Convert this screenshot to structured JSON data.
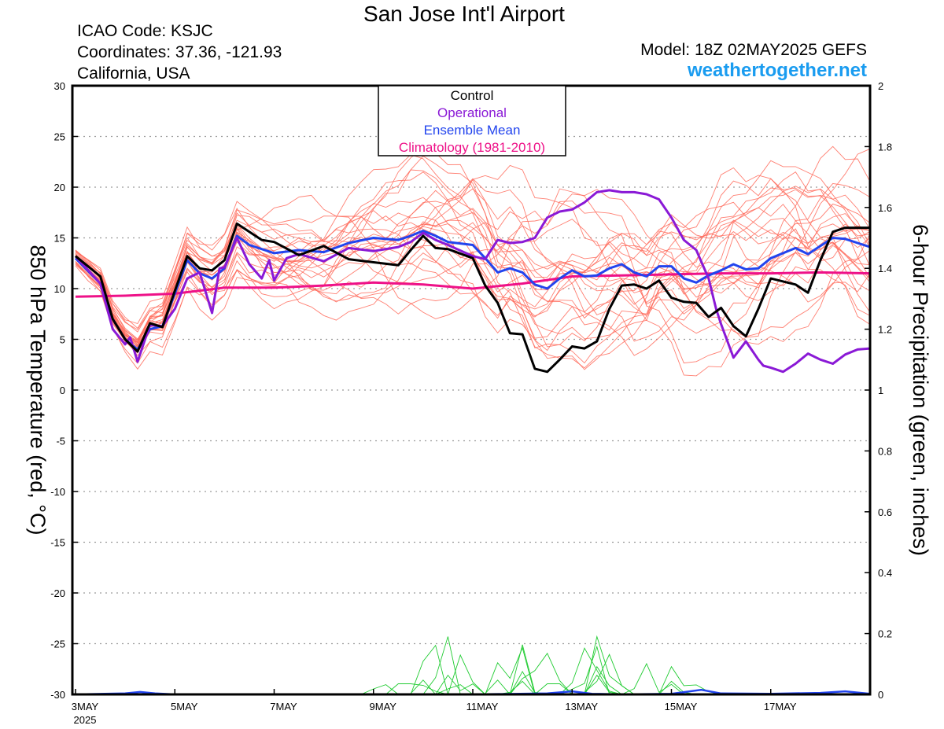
{
  "header": {
    "title": "San Jose Int'l Airport",
    "icao": "ICAO Code: KSJC",
    "coordinates": "Coordinates: 37.36, -121.93",
    "region": "California, USA",
    "model": "Model: 18Z 02MAY2025 GEFS",
    "site": "weathertogether.net"
  },
  "chart_data": {
    "type": "line",
    "title": "San Jose Int'l Airport",
    "ylabel": "850 hPa Temperature (red, °C)",
    "y2label": "6-hour Precipitation (green, inches)",
    "ylim": [
      -30,
      30
    ],
    "y2lim": [
      0,
      2
    ],
    "xlim_days": [
      0,
      16.0
    ],
    "x_ticks": [
      {
        "x": 0,
        "label": "3MAY",
        "sublabel": "2025"
      },
      {
        "x": 2,
        "label": "5MAY"
      },
      {
        "x": 4,
        "label": "7MAY"
      },
      {
        "x": 6,
        "label": "9MAY"
      },
      {
        "x": 8,
        "label": "11MAY"
      },
      {
        "x": 10,
        "label": "13MAY"
      },
      {
        "x": 12,
        "label": "15MAY"
      },
      {
        "x": 14,
        "label": "17MAY"
      }
    ],
    "y_ticks": [
      30,
      25,
      20,
      15,
      10,
      5,
      0,
      -5,
      -10,
      -15,
      -20,
      -25,
      -30
    ],
    "y2_ticks": [
      2,
      1.8,
      1.6,
      1.4,
      1.2,
      1,
      0.8,
      0.6,
      0.4,
      0.2,
      0
    ],
    "grid": true,
    "legend": {
      "placement": "top-center",
      "items": [
        {
          "label": "Control",
          "color": "#000000"
        },
        {
          "label": "Operational",
          "color": "#8a19d6"
        },
        {
          "label": "Ensemble Mean",
          "color": "#2244ee"
        },
        {
          "label": "Climatology (1981-2010)",
          "color": "#ee1188"
        }
      ]
    },
    "series": [
      {
        "name": "Control",
        "color": "#000000",
        "axis": "left",
        "x": [
          0,
          0.5,
          0.75,
          1,
          1.25,
          1.5,
          1.75,
          2,
          2.25,
          2.5,
          2.75,
          3,
          3.25,
          3.5,
          3.75,
          4,
          4.5,
          5,
          5.5,
          6,
          6.5,
          6.75,
          7,
          7.25,
          7.5,
          8,
          8.25,
          8.5,
          8.75,
          9,
          9.25,
          9.5,
          9.75,
          10,
          10.25,
          10.5,
          10.75,
          11,
          11.25,
          11.5,
          11.75,
          12,
          12.25,
          12.5,
          12.75,
          13,
          13.25,
          13.5,
          13.75,
          14,
          14.5,
          14.75,
          15,
          15.25,
          15.5,
          15.75,
          16
        ],
        "y": [
          13.2,
          11.2,
          7.0,
          5.0,
          3.8,
          6.6,
          6.2,
          9.8,
          13.2,
          12.0,
          11.8,
          12.8,
          16.4,
          15.6,
          14.8,
          14.6,
          13.3,
          14.2,
          12.9,
          12.6,
          12.3,
          13.8,
          15.2,
          14.0,
          13.9,
          13.0,
          10.3,
          8.6,
          5.6,
          5.5,
          2.1,
          1.8,
          3.0,
          4.3,
          4.1,
          4.8,
          8.0,
          10.3,
          10.4,
          10.0,
          10.8,
          9.1,
          8.7,
          8.6,
          7.2,
          8.1,
          6.3,
          5.3,
          8.0,
          11.0,
          10.4,
          9.6,
          12.8,
          15.6,
          16.0,
          16.0,
          16.0
        ]
      },
      {
        "name": "Operational",
        "color": "#8a19d6",
        "axis": "left",
        "x": [
          0,
          0.5,
          0.75,
          1,
          1.1,
          1.25,
          1.4,
          1.5,
          1.75,
          2,
          2.25,
          2.5,
          2.75,
          2.9,
          3,
          3.25,
          3.5,
          3.75,
          3.9,
          4,
          4.25,
          4.5,
          5,
          5.5,
          6,
          6.5,
          6.75,
          7,
          7.25,
          7.5,
          8,
          8.25,
          8.5,
          8.75,
          9,
          9.25,
          9.5,
          9.75,
          10,
          10.25,
          10.5,
          10.75,
          11,
          11.25,
          11.5,
          11.75,
          12,
          12.25,
          12.5,
          12.75,
          12.9,
          13,
          13.25,
          13.5,
          13.75,
          13.85,
          14,
          14.25,
          14.5,
          14.75,
          15,
          15.25,
          15.5,
          15.75,
          16
        ],
        "y": [
          13.2,
          10.5,
          6.0,
          4.5,
          5.2,
          2.8,
          5.0,
          6.4,
          6.3,
          8.0,
          11.0,
          11.6,
          7.6,
          12.0,
          12.1,
          15.0,
          12.4,
          11.0,
          12.8,
          10.8,
          13.0,
          13.4,
          12.7,
          14.0,
          13.7,
          14.1,
          14.6,
          15.5,
          14.8,
          14.3,
          13.2,
          12.9,
          14.8,
          14.5,
          14.6,
          15.0,
          17.0,
          17.6,
          17.8,
          18.5,
          19.5,
          19.7,
          19.5,
          19.5,
          19.3,
          18.8,
          17.0,
          14.8,
          13.8,
          11.0,
          8.0,
          6.5,
          3.2,
          4.8,
          3.0,
          2.4,
          2.2,
          1.8,
          2.6,
          3.6,
          3.0,
          2.6,
          3.5,
          4.0,
          4.1
        ]
      },
      {
        "name": "Ensemble Mean",
        "color": "#2244ee",
        "axis": "left",
        "x": [
          0,
          0.5,
          0.75,
          1,
          1.25,
          1.5,
          1.75,
          2,
          2.25,
          2.5,
          2.75,
          3,
          3.25,
          3.5,
          4,
          4.5,
          5,
          5.5,
          6,
          6.5,
          6.75,
          7,
          7.25,
          7.5,
          8,
          8.25,
          8.5,
          8.75,
          9,
          9.25,
          9.5,
          9.75,
          10,
          10.25,
          10.5,
          10.75,
          11,
          11.25,
          11.5,
          11.75,
          12,
          12.25,
          12.5,
          12.75,
          13,
          13.25,
          13.5,
          13.75,
          14,
          14.5,
          14.75,
          15,
          15.25,
          15.5,
          15.75,
          16
        ],
        "y": [
          13.0,
          10.5,
          7.0,
          5.0,
          4.0,
          6.0,
          6.3,
          9.5,
          12.8,
          11.5,
          11.0,
          12.0,
          15.2,
          14.3,
          13.5,
          13.8,
          13.6,
          14.5,
          15.0,
          14.8,
          15.2,
          15.7,
          15.2,
          14.6,
          14.3,
          13.0,
          11.6,
          12.0,
          11.6,
          10.4,
          10.0,
          11.0,
          11.8,
          11.2,
          11.3,
          12.0,
          12.4,
          11.6,
          11.2,
          12.2,
          12.2,
          11.0,
          10.6,
          11.3,
          11.8,
          12.4,
          11.9,
          12.0,
          13.0,
          14.0,
          13.4,
          14.2,
          15.0,
          14.9,
          14.5,
          14.1
        ]
      },
      {
        "name": "Climatology (1981-2010)",
        "color": "#ee1188",
        "axis": "left",
        "x": [
          0,
          1,
          2,
          2.5,
          3,
          4,
          5,
          6,
          7,
          8,
          9,
          10,
          11,
          12,
          13,
          14,
          15,
          16
        ],
        "y": [
          9.2,
          9.3,
          9.5,
          9.8,
          10.1,
          10.1,
          10.3,
          10.6,
          10.4,
          10.0,
          10.5,
          11.2,
          11.3,
          11.4,
          11.5,
          11.5,
          11.6,
          11.5
        ]
      }
    ],
    "precipitation_series": [
      {
        "name": "Ensemble Mean precip",
        "color": "#2244ee",
        "axis": "right",
        "x": [
          0,
          1,
          1.3,
          1.6,
          2,
          4,
          6,
          8,
          9.5,
          10,
          10.4,
          11,
          12,
          12.6,
          13,
          14,
          15,
          15.5,
          16
        ],
        "y": [
          0,
          0.003,
          0.008,
          0.003,
          0,
          0,
          0,
          0,
          0.003,
          0.01,
          0.002,
          0,
          0.002,
          0.015,
          0.003,
          0.002,
          0.005,
          0.01,
          0.002
        ]
      }
    ]
  }
}
